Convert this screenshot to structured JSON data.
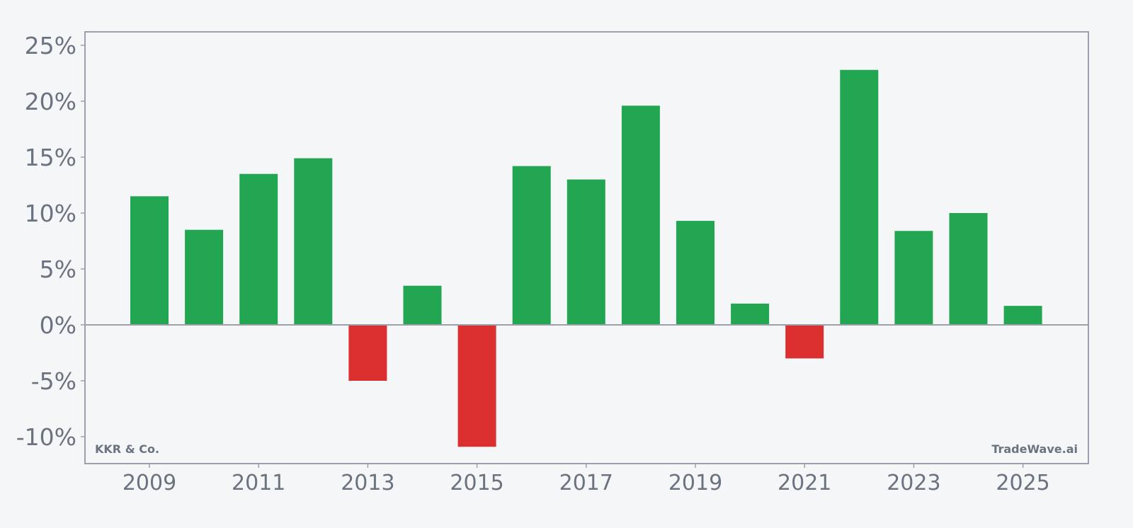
{
  "chart_data": {
    "type": "bar",
    "title": "",
    "xlabel": "",
    "ylabel": "",
    "categories": [
      "2009",
      "2010",
      "2011",
      "2012",
      "2013",
      "2014",
      "2015",
      "2016",
      "2017",
      "2018",
      "2019",
      "2020",
      "2021",
      "2022",
      "2023",
      "2024",
      "2025"
    ],
    "values": [
      11.5,
      8.5,
      13.5,
      14.9,
      -5.0,
      3.5,
      -10.9,
      14.2,
      13.0,
      19.6,
      9.3,
      1.9,
      -3.0,
      22.8,
      8.4,
      10.0,
      1.7
    ],
    "ylim": [
      -12.5,
      25.5
    ],
    "yticks": [
      25,
      20,
      15,
      10,
      5,
      0,
      -5,
      -10
    ],
    "ytick_labels": [
      "25%",
      "20%",
      "15%",
      "10%",
      "5%",
      "0%",
      "-5%",
      "-10%"
    ],
    "xticks": [
      "2009",
      "2011",
      "2013",
      "2015",
      "2017",
      "2019",
      "2021",
      "2023",
      "2025"
    ],
    "grid": false,
    "legend": null,
    "colors": {
      "positive": "#22a652",
      "negative": "#dc3030",
      "axis": "#9ca0aa",
      "text": "#6b7280",
      "background": "#f4f6f8"
    },
    "annotations": {
      "bottom_left": "KKR & Co.",
      "bottom_right": "TradeWave.ai"
    }
  }
}
